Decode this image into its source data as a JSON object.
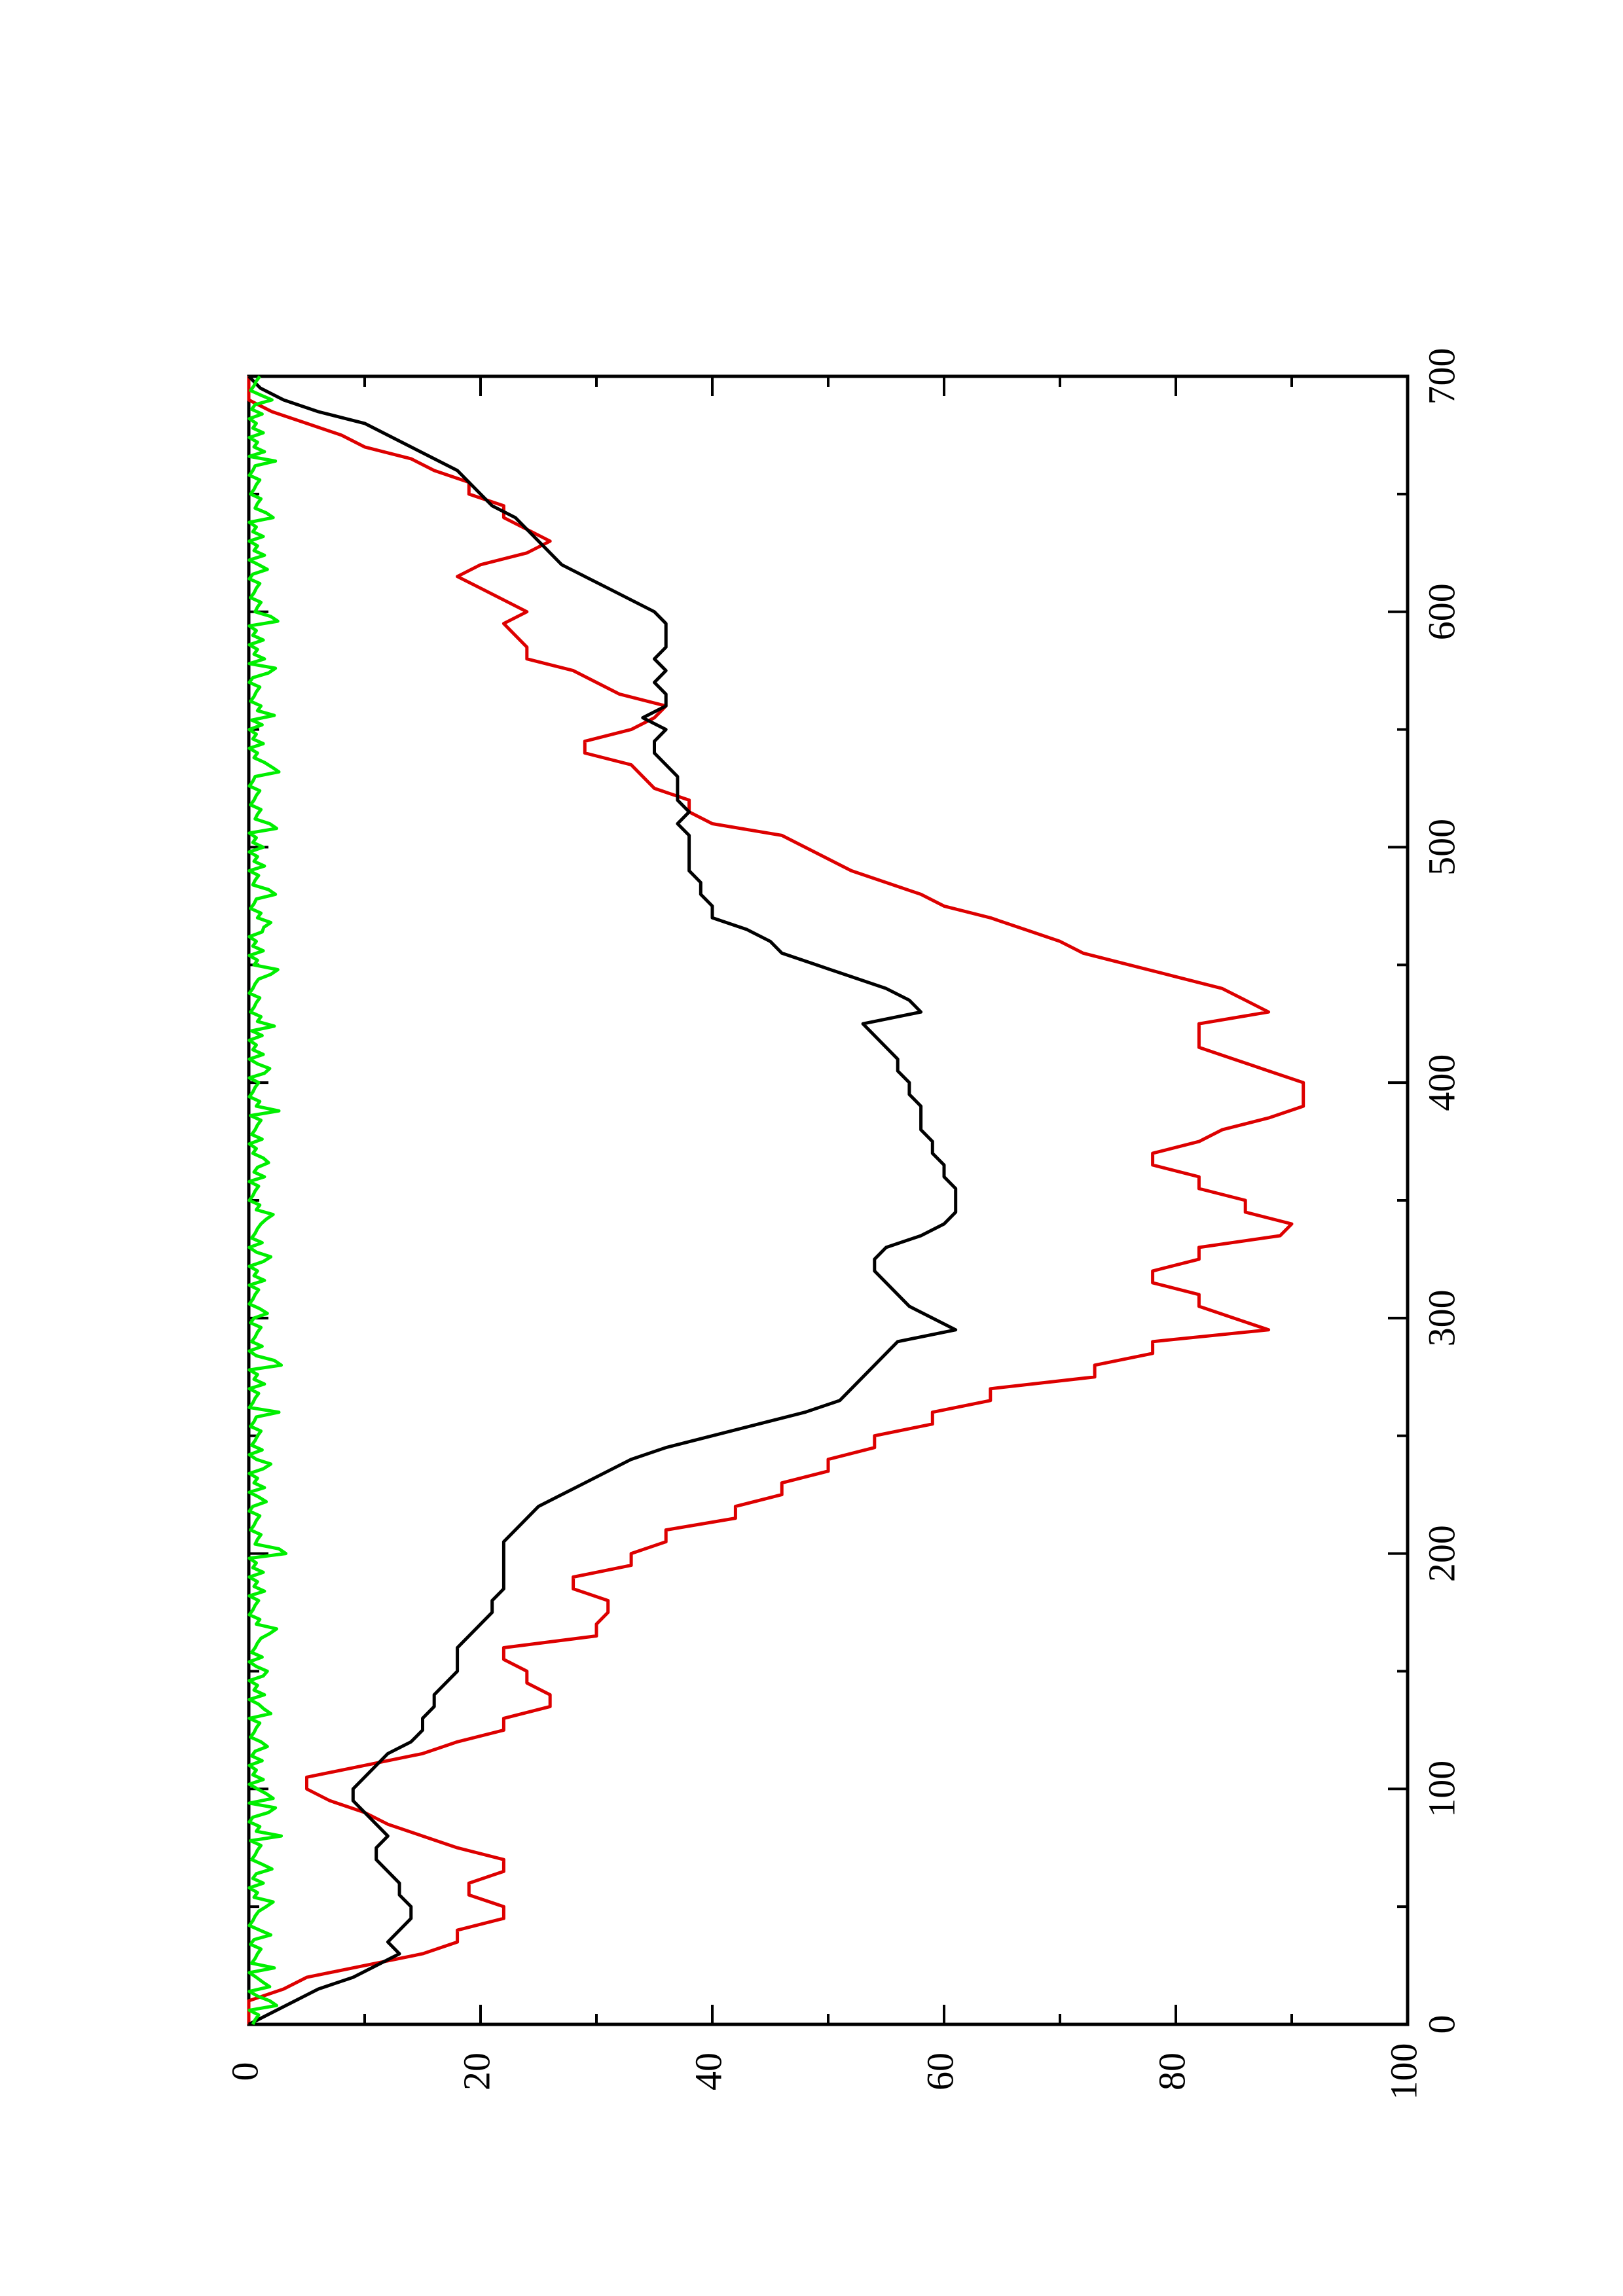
{
  "chart_data": {
    "type": "line",
    "orientation": "rotated-90-ccw",
    "title": "",
    "xlabel": "",
    "ylabel": "",
    "xlim": [
      0,
      700
    ],
    "ylim": [
      0,
      100
    ],
    "x_ticks": [
      "0",
      "100",
      "200",
      "300",
      "400",
      "500",
      "600",
      "700"
    ],
    "y_ticks": [
      "0",
      "20",
      "40",
      "60",
      "80",
      "100"
    ],
    "grid": false,
    "legend": "none",
    "series": [
      {
        "color": "#000000",
        "points": [
          [
            0,
            0
          ],
          [
            5,
            2
          ],
          [
            10,
            4
          ],
          [
            15,
            6
          ],
          [
            20,
            9
          ],
          [
            25,
            11
          ],
          [
            30,
            13
          ],
          [
            35,
            12
          ],
          [
            40,
            13
          ],
          [
            45,
            14
          ],
          [
            50,
            14
          ],
          [
            55,
            13
          ],
          [
            60,
            13
          ],
          [
            65,
            12
          ],
          [
            70,
            11
          ],
          [
            75,
            11
          ],
          [
            80,
            12
          ],
          [
            85,
            11
          ],
          [
            90,
            10
          ],
          [
            95,
            9
          ],
          [
            100,
            9
          ],
          [
            105,
            10
          ],
          [
            110,
            11
          ],
          [
            115,
            12
          ],
          [
            120,
            14
          ],
          [
            125,
            15
          ],
          [
            130,
            15
          ],
          [
            135,
            16
          ],
          [
            140,
            16
          ],
          [
            145,
            17
          ],
          [
            150,
            18
          ],
          [
            155,
            18
          ],
          [
            160,
            18
          ],
          [
            165,
            19
          ],
          [
            170,
            20
          ],
          [
            175,
            21
          ],
          [
            180,
            21
          ],
          [
            185,
            22
          ],
          [
            190,
            22
          ],
          [
            195,
            22
          ],
          [
            200,
            22
          ],
          [
            205,
            22
          ],
          [
            210,
            23
          ],
          [
            215,
            24
          ],
          [
            220,
            25
          ],
          [
            225,
            27
          ],
          [
            230,
            29
          ],
          [
            235,
            31
          ],
          [
            240,
            33
          ],
          [
            245,
            36
          ],
          [
            250,
            40
          ],
          [
            255,
            44
          ],
          [
            260,
            48
          ],
          [
            265,
            51
          ],
          [
            270,
            52
          ],
          [
            275,
            53
          ],
          [
            280,
            54
          ],
          [
            285,
            55
          ],
          [
            290,
            56
          ],
          [
            295,
            61
          ],
          [
            300,
            59
          ],
          [
            305,
            57
          ],
          [
            310,
            56
          ],
          [
            315,
            55
          ],
          [
            320,
            54
          ],
          [
            325,
            54
          ],
          [
            330,
            55
          ],
          [
            335,
            58
          ],
          [
            340,
            60
          ],
          [
            345,
            61
          ],
          [
            350,
            61
          ],
          [
            355,
            61
          ],
          [
            360,
            60
          ],
          [
            365,
            60
          ],
          [
            370,
            59
          ],
          [
            375,
            59
          ],
          [
            380,
            58
          ],
          [
            385,
            58
          ],
          [
            390,
            58
          ],
          [
            395,
            57
          ],
          [
            400,
            57
          ],
          [
            405,
            56
          ],
          [
            410,
            56
          ],
          [
            415,
            55
          ],
          [
            420,
            54
          ],
          [
            425,
            53
          ],
          [
            430,
            58
          ],
          [
            435,
            57
          ],
          [
            440,
            55
          ],
          [
            445,
            52
          ],
          [
            450,
            49
          ],
          [
            455,
            46
          ],
          [
            460,
            45
          ],
          [
            465,
            43
          ],
          [
            470,
            40
          ],
          [
            475,
            40
          ],
          [
            480,
            39
          ],
          [
            485,
            39
          ],
          [
            490,
            38
          ],
          [
            495,
            38
          ],
          [
            500,
            38
          ],
          [
            505,
            38
          ],
          [
            510,
            37
          ],
          [
            515,
            38
          ],
          [
            520,
            37
          ],
          [
            525,
            37
          ],
          [
            530,
            37
          ],
          [
            535,
            36
          ],
          [
            540,
            35
          ],
          [
            545,
            35
          ],
          [
            550,
            36
          ],
          [
            555,
            34
          ],
          [
            560,
            36
          ],
          [
            565,
            36
          ],
          [
            570,
            35
          ],
          [
            575,
            36
          ],
          [
            580,
            35
          ],
          [
            585,
            36
          ],
          [
            590,
            36
          ],
          [
            595,
            36
          ],
          [
            600,
            35
          ],
          [
            605,
            33
          ],
          [
            610,
            31
          ],
          [
            615,
            29
          ],
          [
            620,
            27
          ],
          [
            625,
            26
          ],
          [
            630,
            25
          ],
          [
            635,
            24
          ],
          [
            640,
            23
          ],
          [
            645,
            21
          ],
          [
            650,
            20
          ],
          [
            655,
            19
          ],
          [
            660,
            18
          ],
          [
            665,
            16
          ],
          [
            670,
            14
          ],
          [
            675,
            12
          ],
          [
            680,
            10
          ],
          [
            685,
            6
          ],
          [
            690,
            3
          ],
          [
            695,
            1
          ],
          [
            700,
            0
          ]
        ]
      },
      {
        "color": "#dd0000",
        "points": [
          [
            0,
            0
          ],
          [
            10,
            0
          ],
          [
            15,
            3
          ],
          [
            20,
            5
          ],
          [
            25,
            10
          ],
          [
            30,
            15
          ],
          [
            35,
            18
          ],
          [
            40,
            18
          ],
          [
            45,
            22
          ],
          [
            50,
            22
          ],
          [
            55,
            19
          ],
          [
            60,
            19
          ],
          [
            65,
            22
          ],
          [
            70,
            22
          ],
          [
            75,
            18
          ],
          [
            80,
            15
          ],
          [
            85,
            12
          ],
          [
            90,
            10
          ],
          [
            95,
            7
          ],
          [
            100,
            5
          ],
          [
            105,
            5
          ],
          [
            110,
            10
          ],
          [
            115,
            15
          ],
          [
            120,
            18
          ],
          [
            125,
            22
          ],
          [
            130,
            22
          ],
          [
            135,
            26
          ],
          [
            140,
            26
          ],
          [
            145,
            24
          ],
          [
            150,
            24
          ],
          [
            155,
            22
          ],
          [
            160,
            22
          ],
          [
            165,
            30
          ],
          [
            170,
            30
          ],
          [
            175,
            31
          ],
          [
            180,
            31
          ],
          [
            185,
            28
          ],
          [
            190,
            28
          ],
          [
            195,
            33
          ],
          [
            200,
            33
          ],
          [
            205,
            36
          ],
          [
            210,
            36
          ],
          [
            215,
            42
          ],
          [
            220,
            42
          ],
          [
            225,
            46
          ],
          [
            230,
            46
          ],
          [
            235,
            50
          ],
          [
            240,
            50
          ],
          [
            245,
            54
          ],
          [
            250,
            54
          ],
          [
            255,
            59
          ],
          [
            260,
            59
          ],
          [
            265,
            64
          ],
          [
            270,
            64
          ],
          [
            275,
            73
          ],
          [
            280,
            73
          ],
          [
            285,
            78
          ],
          [
            290,
            78
          ],
          [
            295,
            88
          ],
          [
            300,
            85
          ],
          [
            305,
            82
          ],
          [
            310,
            82
          ],
          [
            315,
            78
          ],
          [
            320,
            78
          ],
          [
            325,
            82
          ],
          [
            330,
            82
          ],
          [
            335,
            89
          ],
          [
            340,
            90
          ],
          [
            345,
            86
          ],
          [
            350,
            86
          ],
          [
            355,
            82
          ],
          [
            360,
            82
          ],
          [
            365,
            78
          ],
          [
            370,
            78
          ],
          [
            375,
            82
          ],
          [
            380,
            84
          ],
          [
            385,
            88
          ],
          [
            390,
            91
          ],
          [
            395,
            91
          ],
          [
            400,
            91
          ],
          [
            405,
            88
          ],
          [
            410,
            85
          ],
          [
            415,
            82
          ],
          [
            420,
            82
          ],
          [
            425,
            82
          ],
          [
            430,
            88
          ],
          [
            435,
            86
          ],
          [
            440,
            84
          ],
          [
            445,
            80
          ],
          [
            450,
            76
          ],
          [
            455,
            72
          ],
          [
            460,
            70
          ],
          [
            465,
            67
          ],
          [
            470,
            64
          ],
          [
            475,
            60
          ],
          [
            480,
            58
          ],
          [
            485,
            55
          ],
          [
            490,
            52
          ],
          [
            495,
            50
          ],
          [
            500,
            48
          ],
          [
            505,
            46
          ],
          [
            510,
            40
          ],
          [
            515,
            38
          ],
          [
            520,
            38
          ],
          [
            525,
            35
          ],
          [
            530,
            34
          ],
          [
            535,
            33
          ],
          [
            540,
            29
          ],
          [
            545,
            29
          ],
          [
            550,
            33
          ],
          [
            555,
            35
          ],
          [
            560,
            36
          ],
          [
            565,
            32
          ],
          [
            570,
            30
          ],
          [
            575,
            28
          ],
          [
            580,
            24
          ],
          [
            585,
            24
          ],
          [
            590,
            23
          ],
          [
            595,
            22
          ],
          [
            600,
            24
          ],
          [
            605,
            22
          ],
          [
            610,
            20
          ],
          [
            615,
            18
          ],
          [
            620,
            20
          ],
          [
            625,
            24
          ],
          [
            630,
            26
          ],
          [
            635,
            24
          ],
          [
            640,
            22
          ],
          [
            645,
            22
          ],
          [
            650,
            19
          ],
          [
            655,
            19
          ],
          [
            660,
            16
          ],
          [
            665,
            14
          ],
          [
            670,
            10
          ],
          [
            675,
            8
          ],
          [
            680,
            5
          ],
          [
            685,
            2
          ],
          [
            690,
            0
          ],
          [
            700,
            0
          ]
        ]
      },
      {
        "color": "#00ee00",
        "baseline_range": [
          0,
          3
        ],
        "spike_x": [
          9,
          17,
          24,
          38,
          51,
          66,
          80,
          91,
          97,
          118,
          133,
          150,
          167,
          201,
          222,
          238,
          260,
          281,
          302,
          326,
          343,
          366,
          388,
          406,
          424,
          447,
          467,
          481,
          509,
          533,
          556,
          575,
          597,
          618,
          641,
          664,
          690
        ],
        "spike_y": [
          2.4,
          1.8,
          2.2,
          2.5,
          2.1,
          2.6,
          2.8,
          2.3,
          2.1,
          2.2,
          1.9,
          2.2,
          2.4,
          3.2,
          2.1,
          2.5,
          2.6,
          2.8,
          2.2,
          2.5,
          2.1,
          2.3,
          2.6,
          2.4,
          2.2,
          2.5,
          1.9,
          2.3,
          2.4,
          2.6,
          2.2,
          2.3,
          2.5,
          2.2,
          2.1,
          2.3,
          2.6
        ]
      }
    ]
  }
}
